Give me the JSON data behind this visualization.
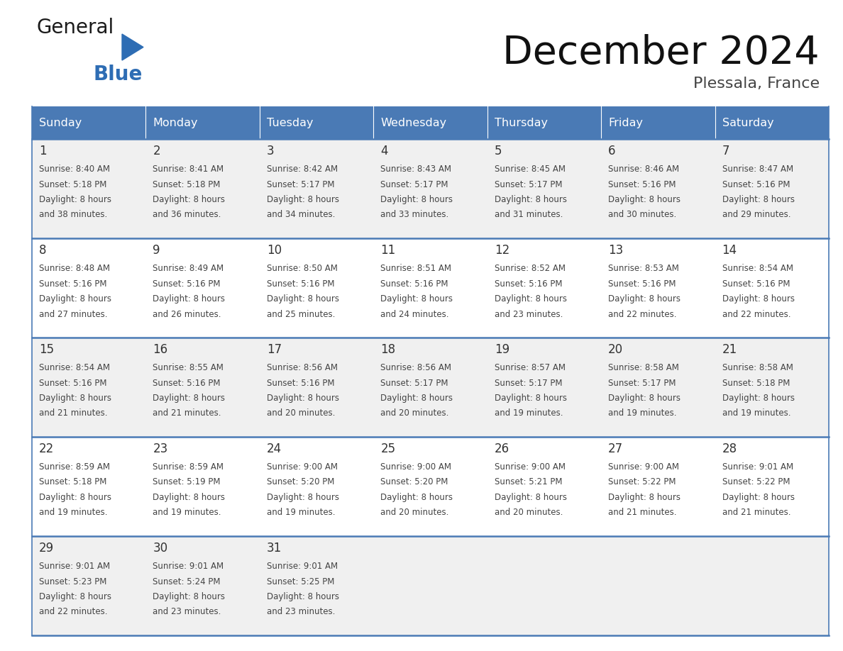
{
  "title": "December 2024",
  "subtitle": "Plessala, France",
  "days_of_week": [
    "Sunday",
    "Monday",
    "Tuesday",
    "Wednesday",
    "Thursday",
    "Friday",
    "Saturday"
  ],
  "header_bg": "#4a7ab5",
  "header_text": "#ffffff",
  "row_bg_odd": "#f0f0f0",
  "row_bg_even": "#ffffff",
  "day_num_color": "#333333",
  "text_color": "#444444",
  "line_color": "#4a7ab5",
  "title_color": "#111111",
  "subtitle_color": "#444444",
  "logo_general_color": "#1a1a1a",
  "logo_blue_color": "#2e6db4",
  "weeks": [
    [
      {
        "day": 1,
        "sunrise": "8:40 AM",
        "sunset": "5:18 PM",
        "daylight": "8 hours and 38 minutes."
      },
      {
        "day": 2,
        "sunrise": "8:41 AM",
        "sunset": "5:18 PM",
        "daylight": "8 hours and 36 minutes."
      },
      {
        "day": 3,
        "sunrise": "8:42 AM",
        "sunset": "5:17 PM",
        "daylight": "8 hours and 34 minutes."
      },
      {
        "day": 4,
        "sunrise": "8:43 AM",
        "sunset": "5:17 PM",
        "daylight": "8 hours and 33 minutes."
      },
      {
        "day": 5,
        "sunrise": "8:45 AM",
        "sunset": "5:17 PM",
        "daylight": "8 hours and 31 minutes."
      },
      {
        "day": 6,
        "sunrise": "8:46 AM",
        "sunset": "5:16 PM",
        "daylight": "8 hours and 30 minutes."
      },
      {
        "day": 7,
        "sunrise": "8:47 AM",
        "sunset": "5:16 PM",
        "daylight": "8 hours and 29 minutes."
      }
    ],
    [
      {
        "day": 8,
        "sunrise": "8:48 AM",
        "sunset": "5:16 PM",
        "daylight": "8 hours and 27 minutes."
      },
      {
        "day": 9,
        "sunrise": "8:49 AM",
        "sunset": "5:16 PM",
        "daylight": "8 hours and 26 minutes."
      },
      {
        "day": 10,
        "sunrise": "8:50 AM",
        "sunset": "5:16 PM",
        "daylight": "8 hours and 25 minutes."
      },
      {
        "day": 11,
        "sunrise": "8:51 AM",
        "sunset": "5:16 PM",
        "daylight": "8 hours and 24 minutes."
      },
      {
        "day": 12,
        "sunrise": "8:52 AM",
        "sunset": "5:16 PM",
        "daylight": "8 hours and 23 minutes."
      },
      {
        "day": 13,
        "sunrise": "8:53 AM",
        "sunset": "5:16 PM",
        "daylight": "8 hours and 22 minutes."
      },
      {
        "day": 14,
        "sunrise": "8:54 AM",
        "sunset": "5:16 PM",
        "daylight": "8 hours and 22 minutes."
      }
    ],
    [
      {
        "day": 15,
        "sunrise": "8:54 AM",
        "sunset": "5:16 PM",
        "daylight": "8 hours and 21 minutes."
      },
      {
        "day": 16,
        "sunrise": "8:55 AM",
        "sunset": "5:16 PM",
        "daylight": "8 hours and 21 minutes."
      },
      {
        "day": 17,
        "sunrise": "8:56 AM",
        "sunset": "5:16 PM",
        "daylight": "8 hours and 20 minutes."
      },
      {
        "day": 18,
        "sunrise": "8:56 AM",
        "sunset": "5:17 PM",
        "daylight": "8 hours and 20 minutes."
      },
      {
        "day": 19,
        "sunrise": "8:57 AM",
        "sunset": "5:17 PM",
        "daylight": "8 hours and 19 minutes."
      },
      {
        "day": 20,
        "sunrise": "8:58 AM",
        "sunset": "5:17 PM",
        "daylight": "8 hours and 19 minutes."
      },
      {
        "day": 21,
        "sunrise": "8:58 AM",
        "sunset": "5:18 PM",
        "daylight": "8 hours and 19 minutes."
      }
    ],
    [
      {
        "day": 22,
        "sunrise": "8:59 AM",
        "sunset": "5:18 PM",
        "daylight": "8 hours and 19 minutes."
      },
      {
        "day": 23,
        "sunrise": "8:59 AM",
        "sunset": "5:19 PM",
        "daylight": "8 hours and 19 minutes."
      },
      {
        "day": 24,
        "sunrise": "9:00 AM",
        "sunset": "5:20 PM",
        "daylight": "8 hours and 19 minutes."
      },
      {
        "day": 25,
        "sunrise": "9:00 AM",
        "sunset": "5:20 PM",
        "daylight": "8 hours and 20 minutes."
      },
      {
        "day": 26,
        "sunrise": "9:00 AM",
        "sunset": "5:21 PM",
        "daylight": "8 hours and 20 minutes."
      },
      {
        "day": 27,
        "sunrise": "9:00 AM",
        "sunset": "5:22 PM",
        "daylight": "8 hours and 21 minutes."
      },
      {
        "day": 28,
        "sunrise": "9:01 AM",
        "sunset": "5:22 PM",
        "daylight": "8 hours and 21 minutes."
      }
    ],
    [
      {
        "day": 29,
        "sunrise": "9:01 AM",
        "sunset": "5:23 PM",
        "daylight": "8 hours and 22 minutes."
      },
      {
        "day": 30,
        "sunrise": "9:01 AM",
        "sunset": "5:24 PM",
        "daylight": "8 hours and 23 minutes."
      },
      {
        "day": 31,
        "sunrise": "9:01 AM",
        "sunset": "5:25 PM",
        "daylight": "8 hours and 23 minutes."
      },
      null,
      null,
      null,
      null
    ]
  ]
}
